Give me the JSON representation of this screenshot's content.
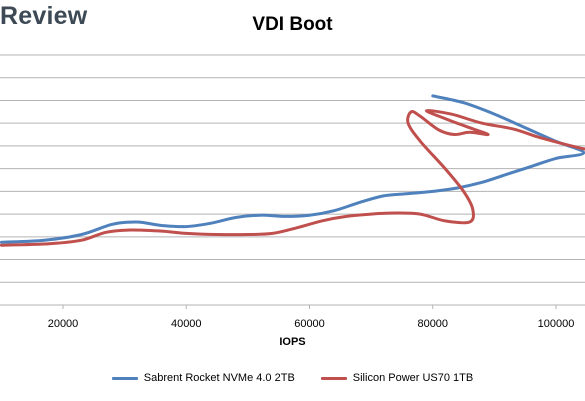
{
  "brand": "Review",
  "colors": {
    "series_blue": "#4f81bd",
    "series_red": "#c0504d",
    "grid": "#b3b3b3"
  },
  "chart_data": {
    "type": "line",
    "title": "VDI Boot",
    "xlabel": "IOPS",
    "ylabel": "",
    "x_ticks": [
      20000,
      40000,
      60000,
      80000,
      100000
    ],
    "x_tick_labels": [
      "20000",
      "40000",
      "60000",
      "80000",
      "100000"
    ],
    "xlim": [
      10000,
      105000
    ],
    "ylim": [
      0,
      11
    ],
    "y_gridlines": [
      1,
      2,
      3,
      4,
      5,
      6,
      7,
      8,
      9,
      10,
      11
    ],
    "grid": true,
    "legend_position": "bottom",
    "series": [
      {
        "name": "Sabrent Rocket NVMe 4.0 2TB",
        "color": "#4f81bd",
        "points": [
          [
            10000,
            2.76
          ],
          [
            17000,
            2.85
          ],
          [
            23000,
            3.1
          ],
          [
            28000,
            3.55
          ],
          [
            32000,
            3.65
          ],
          [
            36000,
            3.5
          ],
          [
            40000,
            3.45
          ],
          [
            44000,
            3.6
          ],
          [
            48000,
            3.85
          ],
          [
            52000,
            3.95
          ],
          [
            56000,
            3.9
          ],
          [
            60000,
            3.95
          ],
          [
            64000,
            4.15
          ],
          [
            68000,
            4.5
          ],
          [
            72000,
            4.8
          ],
          [
            76000,
            4.9
          ],
          [
            80000,
            5.0
          ],
          [
            84000,
            5.15
          ],
          [
            88000,
            5.4
          ],
          [
            92000,
            5.75
          ],
          [
            96000,
            6.1
          ],
          [
            100000,
            6.45
          ],
          [
            104500,
            6.7
          ],
          [
            100000,
            7.2
          ],
          [
            95000,
            7.8
          ],
          [
            90000,
            8.4
          ],
          [
            85000,
            8.9
          ],
          [
            80000,
            9.2
          ]
        ]
      },
      {
        "name": "Silicon Power US70 1TB",
        "color": "#c0504d",
        "points": [
          [
            10000,
            2.63
          ],
          [
            18000,
            2.7
          ],
          [
            23000,
            2.85
          ],
          [
            27000,
            3.2
          ],
          [
            31000,
            3.3
          ],
          [
            36000,
            3.25
          ],
          [
            40000,
            3.15
          ],
          [
            45000,
            3.1
          ],
          [
            50000,
            3.1
          ],
          [
            54000,
            3.15
          ],
          [
            58000,
            3.4
          ],
          [
            62000,
            3.7
          ],
          [
            66000,
            3.9
          ],
          [
            70000,
            4.0
          ],
          [
            74000,
            4.05
          ],
          [
            78000,
            4.0
          ],
          [
            82000,
            3.7
          ],
          [
            86000,
            3.65
          ],
          [
            86500,
            4.2
          ],
          [
            85000,
            5.0
          ],
          [
            82000,
            6.0
          ],
          [
            78000,
            7.2
          ],
          [
            76000,
            8.0
          ],
          [
            76500,
            8.5
          ],
          [
            78000,
            8.3
          ],
          [
            81000,
            7.7
          ],
          [
            83500,
            7.5
          ],
          [
            86000,
            7.6
          ],
          [
            89000,
            7.5
          ],
          [
            86000,
            7.8
          ],
          [
            82000,
            8.2
          ],
          [
            79000,
            8.55
          ],
          [
            83000,
            8.4
          ],
          [
            88000,
            8.0
          ],
          [
            93000,
            7.75
          ],
          [
            97000,
            7.4
          ],
          [
            101000,
            7.1
          ],
          [
            104000,
            6.9
          ],
          [
            105000,
            6.85
          ]
        ]
      }
    ]
  }
}
